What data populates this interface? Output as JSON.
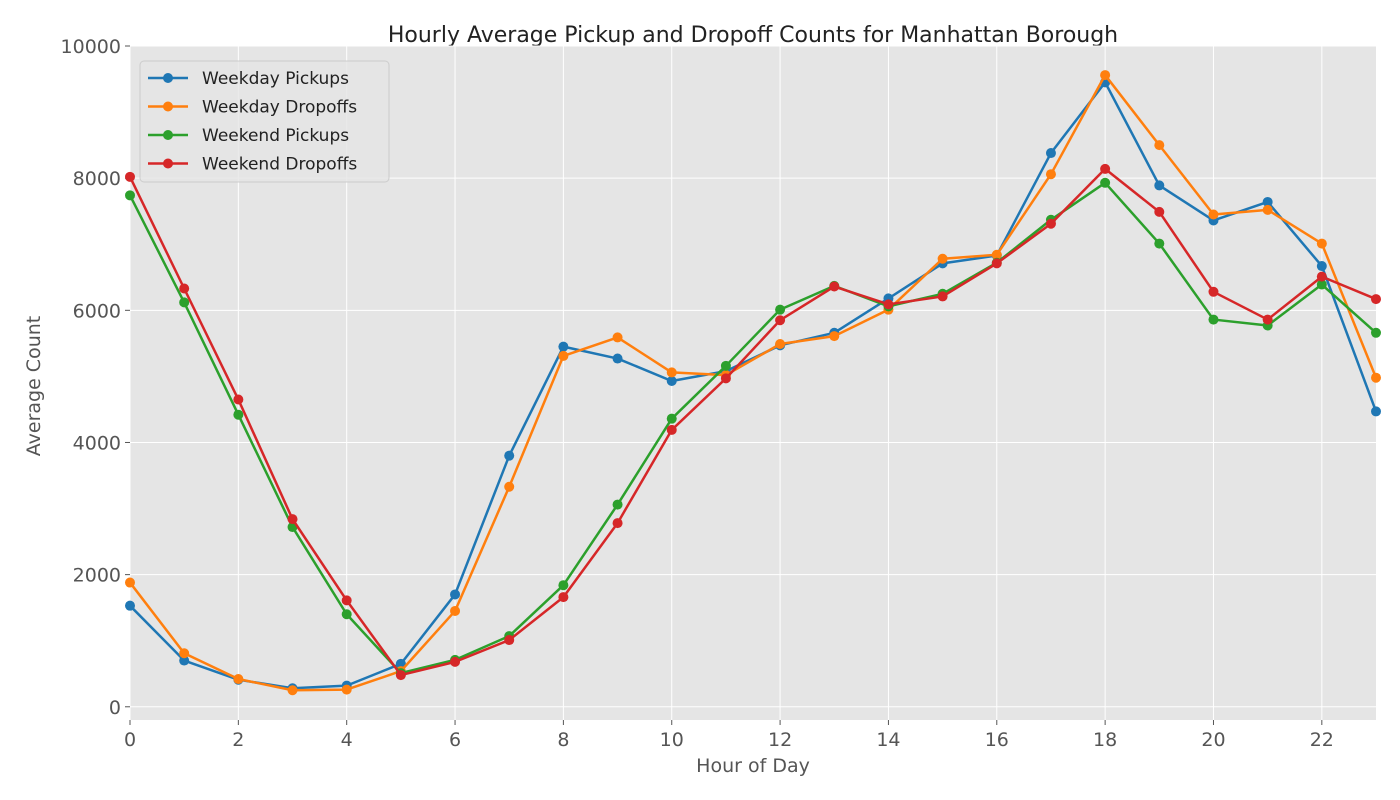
{
  "chart_data": {
    "type": "line",
    "title": "Hourly Average Pickup and Dropoff Counts for Manhattan Borough",
    "xlabel": "Hour of Day",
    "ylabel": "Average Count",
    "xlim": [
      0,
      23
    ],
    "ylim": [
      -200,
      10000
    ],
    "xticks": [
      0,
      2,
      4,
      6,
      8,
      10,
      12,
      14,
      16,
      18,
      20,
      22
    ],
    "yticks": [
      0,
      2000,
      4000,
      6000,
      8000,
      10000
    ],
    "grid": true,
    "legend_position": "top-left",
    "x": [
      0,
      1,
      2,
      3,
      4,
      5,
      6,
      7,
      8,
      9,
      10,
      11,
      12,
      13,
      14,
      15,
      16,
      17,
      18,
      19,
      20,
      21,
      22,
      23
    ],
    "series": [
      {
        "name": "Weekday Pickups",
        "color": "#1f77b4",
        "values": [
          1530,
          700,
          410,
          280,
          320,
          650,
          1700,
          3800,
          5450,
          5270,
          4930,
          5080,
          5470,
          5660,
          6180,
          6710,
          6830,
          8380,
          9450,
          7890,
          7360,
          7640,
          6670,
          4470
        ]
      },
      {
        "name": "Weekday Dropoffs",
        "color": "#ff7f0e",
        "values": [
          1880,
          810,
          420,
          250,
          260,
          540,
          1450,
          3330,
          5310,
          5590,
          5060,
          5020,
          5490,
          5610,
          6010,
          6780,
          6840,
          8060,
          9560,
          8500,
          7450,
          7520,
          7010,
          4980
        ]
      },
      {
        "name": "Weekend Pickups",
        "color": "#2ca02c",
        "values": [
          7740,
          6120,
          4420,
          2720,
          1400,
          510,
          710,
          1070,
          1840,
          3060,
          4360,
          5160,
          6010,
          6370,
          6060,
          6250,
          6720,
          7370,
          7930,
          7010,
          5860,
          5770,
          6390,
          5660
        ]
      },
      {
        "name": "Weekend Dropoffs",
        "color": "#d62728",
        "values": [
          8020,
          6330,
          4650,
          2840,
          1610,
          480,
          680,
          1010,
          1660,
          2780,
          4190,
          4970,
          5850,
          6360,
          6090,
          6210,
          6710,
          7310,
          8140,
          7490,
          6280,
          5860,
          6510,
          6170
        ]
      }
    ]
  }
}
